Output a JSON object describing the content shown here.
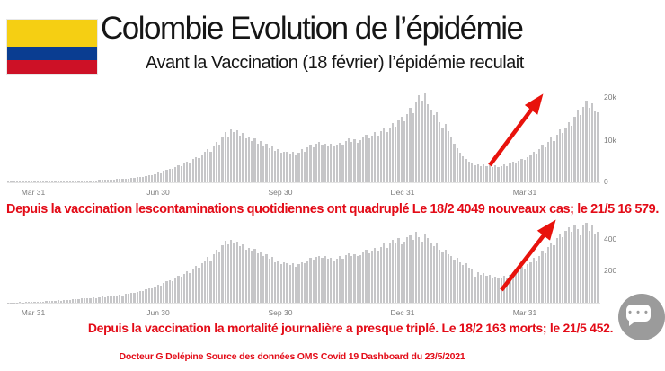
{
  "header": {
    "title": "Colombie Evolution de l’épidémie",
    "subtitle": "Avant la Vaccination (18 février) l’épidémie reculait"
  },
  "flag": {
    "yellow": "#f5cf13",
    "blue": "#0a3d91",
    "red": "#cd1126"
  },
  "colors": {
    "annotation_red": "#e30b17",
    "arrow_red": "#e8120c",
    "bar_gray": "#c6c6c8",
    "tick_gray": "#7b7b7b"
  },
  "annotations": {
    "cases": "Depuis la vaccination lescontaminations quotidiennes ont quadruplé Le 18/2 4049 nouveaux cas; le 21/5 16 579.",
    "deaths": "Depuis la vaccination la mortalité journalière a presque triplé. Le 18/2 163 morts; le 21/5 452.",
    "source": "Docteur G Delépine Source des données OMS Covid 19 Dashboard du 23/5/2021"
  },
  "chat_widget": {
    "dots": "• • •"
  },
  "chart_data": [
    {
      "type": "bar",
      "x_labels": [
        "Mar 31",
        "Jun 30",
        "Sep 30",
        "Dec 31",
        "Mar 31"
      ],
      "yticks": [
        "0",
        "10k",
        "20k"
      ],
      "ylim": [
        0,
        22000
      ],
      "highlight_points": {
        "18/2": 4049,
        "21/5": 16579
      },
      "values": [
        30,
        50,
        70,
        80,
        100,
        120,
        110,
        140,
        160,
        150,
        180,
        200,
        190,
        220,
        250,
        230,
        270,
        300,
        280,
        320,
        350,
        330,
        370,
        400,
        380,
        420,
        450,
        430,
        480,
        520,
        490,
        560,
        600,
        570,
        650,
        700,
        660,
        750,
        820,
        780,
        900,
        950,
        1050,
        1000,
        1200,
        1350,
        1300,
        1550,
        1750,
        1700,
        2000,
        2300,
        2200,
        2700,
        3000,
        3200,
        3100,
        3600,
        4000,
        3800,
        4400,
        4900,
        4600,
        5400,
        6000,
        5700,
        6500,
        7200,
        7800,
        7200,
        8500,
        9500,
        8800,
        10500,
        11800,
        10800,
        12500,
        11800,
        12200,
        11000,
        11600,
        10400,
        10800,
        9800,
        10300,
        9200,
        9700,
        8600,
        9100,
        8000,
        8400,
        7400,
        7800,
        7000,
        7300,
        7200,
        6800,
        7200,
        6500,
        7000,
        7800,
        7300,
        8200,
        8800,
        8300,
        9000,
        9500,
        8800,
        9200,
        8600,
        9000,
        8400,
        8800,
        9400,
        8800,
        9800,
        10300,
        9600,
        10100,
        9300,
        9900,
        10600,
        11200,
        10400,
        11000,
        11800,
        11000,
        12000,
        12800,
        11800,
        13000,
        14000,
        13200,
        14500,
        15500,
        14400,
        16000,
        17500,
        16200,
        18800,
        20500,
        19200,
        21000,
        18500,
        17200,
        15800,
        16500,
        14200,
        13000,
        13800,
        12000,
        10500,
        9200,
        8000,
        7000,
        6200,
        5500,
        4900,
        4400,
        4049,
        4300,
        3900,
        4200,
        3800,
        4100,
        3700,
        4000,
        3600,
        3900,
        4200,
        3800,
        4400,
        4800,
        4500,
        5100,
        5600,
        5200,
        5900,
        6500,
        7200,
        6800,
        7800,
        8800,
        8200,
        9500,
        10500,
        9800,
        11200,
        12500,
        11600,
        13000,
        14200,
        13400,
        15500,
        17000,
        15800,
        17800,
        19300,
        17500,
        18600,
        16800,
        16579
      ]
    },
    {
      "type": "bar",
      "x_labels": [
        "Mar 31",
        "Jun 30",
        "Sep 30",
        "Dec 31",
        "Mar 31"
      ],
      "yticks": [
        "200",
        "400"
      ],
      "ylim": [
        0,
        520
      ],
      "highlight_points": {
        "18/2": 163,
        "21/5": 452
      },
      "values": [
        0,
        1,
        1,
        2,
        3,
        2,
        4,
        5,
        4,
        6,
        7,
        6,
        8,
        9,
        11,
        10,
        13,
        15,
        14,
        17,
        19,
        18,
        21,
        24,
        22,
        26,
        28,
        27,
        30,
        33,
        31,
        35,
        38,
        36,
        40,
        44,
        42,
        47,
        51,
        48,
        55,
        58,
        64,
        61,
        70,
        77,
        74,
        85,
        93,
        90,
        103,
        115,
        110,
        128,
        135,
        145,
        140,
        158,
        172,
        165,
        185,
        200,
        190,
        215,
        235,
        225,
        250,
        270,
        290,
        270,
        310,
        340,
        320,
        365,
        395,
        370,
        400,
        380,
        390,
        360,
        370,
        340,
        350,
        330,
        345,
        315,
        325,
        295,
        310,
        280,
        290,
        260,
        270,
        245,
        255,
        250,
        240,
        250,
        230,
        245,
        260,
        250,
        270,
        285,
        272,
        290,
        300,
        285,
        295,
        280,
        285,
        270,
        280,
        295,
        280,
        305,
        315,
        300,
        310,
        295,
        305,
        320,
        335,
        315,
        330,
        350,
        330,
        355,
        375,
        350,
        380,
        400,
        380,
        410,
        370,
        390,
        420,
        430,
        400,
        450,
        420,
        390,
        440,
        410,
        380,
        360,
        375,
        340,
        325,
        335,
        310,
        295,
        275,
        285,
        255,
        240,
        250,
        225,
        210,
        163,
        195,
        180,
        190,
        170,
        175,
        160,
        168,
        152,
        162,
        172,
        155,
        180,
        195,
        185,
        210,
        230,
        215,
        245,
        260,
        285,
        270,
        300,
        330,
        315,
        355,
        385,
        365,
        410,
        440,
        420,
        460,
        480,
        450,
        500,
        470,
        430,
        490,
        510,
        460,
        495,
        440,
        452
      ]
    }
  ]
}
